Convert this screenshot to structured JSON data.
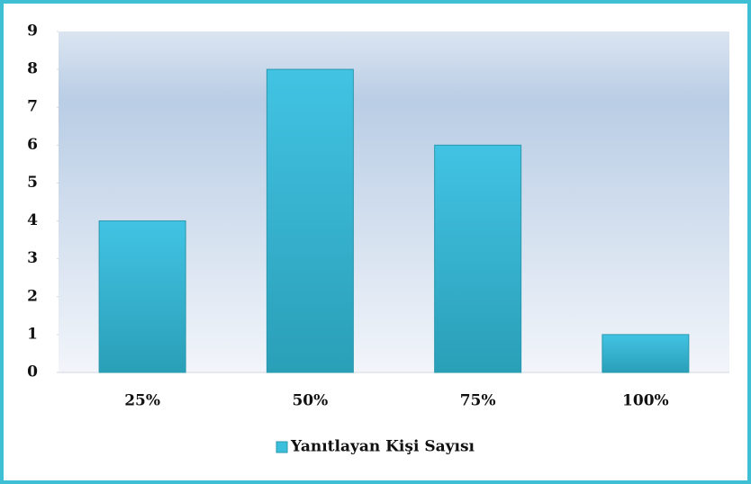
{
  "chart_data": {
    "type": "bar",
    "categories": [
      "25%",
      "50%",
      "75%",
      "100%"
    ],
    "series": [
      {
        "name": "Yanıtlayan Kişi Sayısı",
        "color": "#3cbfdd",
        "values": [
          4,
          8,
          6,
          1
        ]
      }
    ],
    "ylim": [
      0,
      9
    ],
    "yticks": [
      0,
      1,
      2,
      3,
      4,
      5,
      6,
      7,
      8,
      9
    ],
    "legend": "bottom"
  }
}
